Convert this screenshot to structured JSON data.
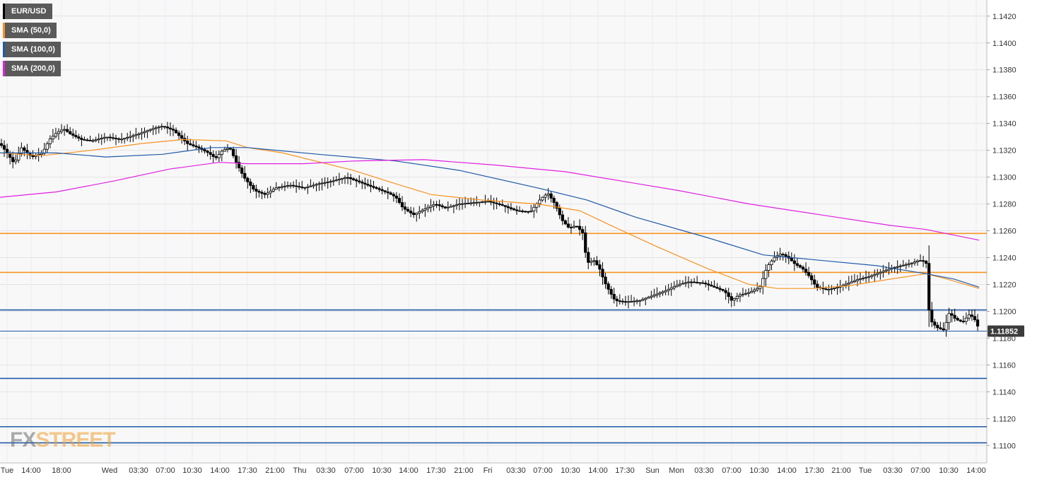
{
  "legend": [
    {
      "label": "EUR/USD",
      "color": "#000000"
    },
    {
      "label": "SMA (50,0)",
      "color": "#f7931e"
    },
    {
      "label": "SMA (100,0)",
      "color": "#1f5aa6"
    },
    {
      "label": "SMA (200,0)",
      "color": "#e020e0"
    }
  ],
  "logo": {
    "part1": "FX",
    "part2": "STREET"
  },
  "chart_data": {
    "type": "candlestick",
    "symbol": "EUR/USD",
    "interval": "15m",
    "ylim": [
      1.1087,
      1.1432
    ],
    "yticks": [
      "1.1420",
      "1.1400",
      "1.1380",
      "1.1360",
      "1.1340",
      "1.1320",
      "1.1300",
      "1.1280",
      "1.1260",
      "1.1240",
      "1.1220",
      "1.1200",
      "1.1180",
      "1.1160",
      "1.1140",
      "1.1120",
      "1.1100"
    ],
    "xticks": [
      "Tue",
      "14:00",
      "18:00",
      "Wed",
      "03:30",
      "07:00",
      "10:30",
      "14:00",
      "17:30",
      "21:00",
      "Thu",
      "03:30",
      "07:00",
      "10:30",
      "14:00",
      "17:30",
      "21:00",
      "Fri",
      "03:30",
      "07:00",
      "10:30",
      "14:00",
      "17:30",
      "Sun",
      "Mon",
      "03:30",
      "07:00",
      "10:30",
      "14:00",
      "17:30",
      "21:00",
      "Tue",
      "03:30",
      "07:00",
      "10:30",
      "14:00"
    ],
    "grid": true,
    "last_price": "1.11852",
    "horizontal_levels": [
      {
        "value": 1.1258,
        "color": "#f7931e"
      },
      {
        "value": 1.1229,
        "color": "#f7931e"
      },
      {
        "value": 1.1201,
        "color": "#1f5aa6"
      },
      {
        "value": 1.115,
        "color": "#1f5aa6"
      },
      {
        "value": 1.1114,
        "color": "#1f5aa6"
      },
      {
        "value": 1.1102,
        "color": "#1f5aa6"
      }
    ],
    "price_path": [
      [
        0,
        1.1325
      ],
      [
        10,
        1.1318
      ],
      [
        20,
        1.131
      ],
      [
        30,
        1.1322
      ],
      [
        45,
        1.1315
      ],
      [
        60,
        1.1318
      ],
      [
        70,
        1.1328
      ],
      [
        80,
        1.1333
      ],
      [
        90,
        1.1336
      ],
      [
        100,
        1.1332
      ],
      [
        115,
        1.1328
      ],
      [
        130,
        1.1327
      ],
      [
        150,
        1.133
      ],
      [
        170,
        1.1328
      ],
      [
        195,
        1.1332
      ],
      [
        215,
        1.1336
      ],
      [
        230,
        1.1338
      ],
      [
        245,
        1.1335
      ],
      [
        255,
        1.133
      ],
      [
        265,
        1.1325
      ],
      [
        280,
        1.1322
      ],
      [
        295,
        1.1318
      ],
      [
        305,
        1.1314
      ],
      [
        315,
        1.132
      ],
      [
        325,
        1.1322
      ],
      [
        335,
        1.131
      ],
      [
        345,
        1.13
      ],
      [
        360,
        1.129
      ],
      [
        375,
        1.1287
      ],
      [
        390,
        1.1292
      ],
      [
        410,
        1.1294
      ],
      [
        430,
        1.1292
      ],
      [
        450,
        1.1295
      ],
      [
        470,
        1.1297
      ],
      [
        490,
        1.13
      ],
      [
        510,
        1.1296
      ],
      [
        530,
        1.1292
      ],
      [
        550,
        1.1288
      ],
      [
        560,
        1.1285
      ],
      [
        570,
        1.1277
      ],
      [
        585,
        1.1272
      ],
      [
        600,
        1.1276
      ],
      [
        615,
        1.128
      ],
      [
        630,
        1.1277
      ],
      [
        650,
        1.128
      ],
      [
        670,
        1.1281
      ],
      [
        690,
        1.1282
      ],
      [
        710,
        1.1279
      ],
      [
        730,
        1.1275
      ],
      [
        750,
        1.1274
      ],
      [
        765,
        1.1284
      ],
      [
        775,
        1.1288
      ],
      [
        785,
        1.128
      ],
      [
        795,
        1.1268
      ],
      [
        805,
        1.1262
      ],
      [
        815,
        1.1264
      ],
      [
        825,
        1.1258
      ],
      [
        830,
        1.1236
      ],
      [
        840,
        1.1238
      ],
      [
        848,
        1.1232
      ],
      [
        855,
        1.1222
      ],
      [
        862,
        1.1215
      ],
      [
        870,
        1.1208
      ],
      [
        885,
        1.1207
      ],
      [
        905,
        1.1208
      ],
      [
        920,
        1.1211
      ],
      [
        940,
        1.1215
      ],
      [
        960,
        1.122
      ],
      [
        975,
        1.1222
      ],
      [
        995,
        1.1221
      ],
      [
        1010,
        1.1218
      ],
      [
        1025,
        1.1215
      ],
      [
        1035,
        1.1208
      ],
      [
        1045,
        1.1212
      ],
      [
        1060,
        1.1214
      ],
      [
        1075,
        1.1218
      ],
      [
        1085,
        1.1233
      ],
      [
        1095,
        1.124
      ],
      [
        1105,
        1.1243
      ],
      [
        1115,
        1.124
      ],
      [
        1125,
        1.1235
      ],
      [
        1135,
        1.1232
      ],
      [
        1145,
        1.1226
      ],
      [
        1155,
        1.1218
      ],
      [
        1170,
        1.1216
      ],
      [
        1185,
        1.1218
      ],
      [
        1200,
        1.1221
      ],
      [
        1215,
        1.1224
      ],
      [
        1230,
        1.1226
      ],
      [
        1245,
        1.1229
      ],
      [
        1260,
        1.1232
      ],
      [
        1275,
        1.1234
      ],
      [
        1290,
        1.1236
      ],
      [
        1300,
        1.1238
      ],
      [
        1310,
        1.1237
      ],
      [
        1315,
        1.1194
      ],
      [
        1325,
        1.1188
      ],
      [
        1335,
        1.1186
      ],
      [
        1343,
        1.1199
      ],
      [
        1352,
        1.1194
      ],
      [
        1362,
        1.1192
      ],
      [
        1372,
        1.1198
      ],
      [
        1380,
        1.1193
      ],
      [
        1386,
        1.1185
      ]
    ],
    "series": [
      {
        "name": "SMA (50,0)",
        "color": "#f7931e",
        "points": [
          [
            0,
            1.1318
          ],
          [
            60,
            1.1316
          ],
          [
            130,
            1.132
          ],
          [
            200,
            1.1325
          ],
          [
            260,
            1.1328
          ],
          [
            320,
            1.1327
          ],
          [
            350,
            1.1322
          ],
          [
            400,
            1.1318
          ],
          [
            500,
            1.1305
          ],
          [
            560,
            1.1295
          ],
          [
            610,
            1.1287
          ],
          [
            680,
            1.1283
          ],
          [
            760,
            1.128
          ],
          [
            820,
            1.1275
          ],
          [
            860,
            1.1265
          ],
          [
            930,
            1.1248
          ],
          [
            1000,
            1.1232
          ],
          [
            1060,
            1.122
          ],
          [
            1100,
            1.1217
          ],
          [
            1150,
            1.1217
          ],
          [
            1200,
            1.1219
          ],
          [
            1260,
            1.1224
          ],
          [
            1310,
            1.1228
          ],
          [
            1340,
            1.1224
          ],
          [
            1385,
            1.1217
          ]
        ]
      },
      {
        "name": "SMA (100,0)",
        "color": "#1f5aa6",
        "points": [
          [
            0,
            1.1318
          ],
          [
            80,
            1.1318
          ],
          [
            150,
            1.1315
          ],
          [
            230,
            1.1317
          ],
          [
            300,
            1.1322
          ],
          [
            350,
            1.1322
          ],
          [
            450,
            1.1317
          ],
          [
            560,
            1.1312
          ],
          [
            650,
            1.1305
          ],
          [
            760,
            1.1292
          ],
          [
            830,
            1.1283
          ],
          [
            900,
            1.127
          ],
          [
            1000,
            1.1255
          ],
          [
            1080,
            1.1242
          ],
          [
            1160,
            1.1238
          ],
          [
            1240,
            1.1234
          ],
          [
            1310,
            1.1228
          ],
          [
            1350,
            1.1224
          ],
          [
            1385,
            1.1218
          ]
        ]
      },
      {
        "name": "SMA (200,0)",
        "color": "#e020e0",
        "points": [
          [
            0,
            1.1285
          ],
          [
            80,
            1.1289
          ],
          [
            160,
            1.1297
          ],
          [
            240,
            1.1306
          ],
          [
            310,
            1.1311
          ],
          [
            350,
            1.131
          ],
          [
            430,
            1.131
          ],
          [
            500,
            1.1312
          ],
          [
            600,
            1.1313
          ],
          [
            700,
            1.1309
          ],
          [
            800,
            1.1304
          ],
          [
            880,
            1.1297
          ],
          [
            960,
            1.129
          ],
          [
            1060,
            1.128
          ],
          [
            1160,
            1.1272
          ],
          [
            1260,
            1.1264
          ],
          [
            1310,
            1.1261
          ],
          [
            1385,
            1.1253
          ]
        ]
      }
    ]
  }
}
